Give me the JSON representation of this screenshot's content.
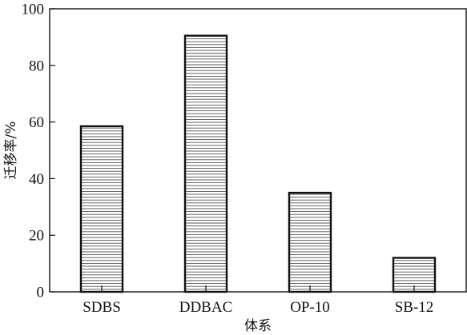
{
  "chart_data": {
    "type": "bar",
    "title": "",
    "xlabel": "体系",
    "ylabel": "迁移率/%",
    "categories": [
      "SDBS",
      "DDBAC",
      "OP-10",
      "SB-12"
    ],
    "values": [
      58.5,
      90.5,
      35,
      12
    ],
    "ylim": [
      0,
      100
    ],
    "yticks": [
      0,
      20,
      40,
      60,
      80,
      100
    ],
    "grid": false,
    "bar_fill": "horizontal-hatch",
    "colors": {
      "ink": "#111111",
      "hatch": "#555555",
      "background": "#ffffff"
    }
  }
}
